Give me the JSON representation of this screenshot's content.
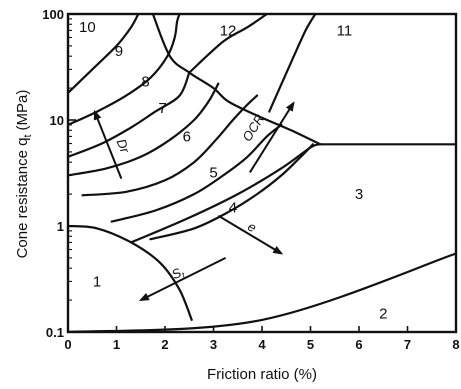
{
  "chart_data": {
    "type": "line",
    "title": "",
    "xlabel": "Friction ratio (%)",
    "ylabel": "Cone resistance q",
    "ylabel_subscript": "t",
    "ylabel_unit": "(MPa)",
    "xlim": [
      0,
      8
    ],
    "ylim": [
      0.1,
      100
    ],
    "y_scale": "log",
    "x_ticks": [
      "0",
      "1",
      "2",
      "3",
      "4",
      "5",
      "6",
      "7",
      "8"
    ],
    "y_ticks": [
      {
        "value": 0.1,
        "label": "0.1"
      },
      {
        "value": 1,
        "label": "1"
      },
      {
        "value": 10,
        "label": "10"
      },
      {
        "value": 100,
        "label": "100"
      }
    ],
    "grid": false,
    "zone_labels": [
      {
        "label": "1",
        "x": 0.6,
        "y": 0.3
      },
      {
        "label": "2",
        "x": 6.5,
        "y": 0.15
      },
      {
        "label": "3",
        "x": 6.0,
        "y": 2.0
      },
      {
        "label": "4",
        "x": 3.4,
        "y": 1.5
      },
      {
        "label": "5",
        "x": 3.0,
        "y": 3.2
      },
      {
        "label": "6",
        "x": 2.45,
        "y": 7.0
      },
      {
        "label": "7",
        "x": 1.95,
        "y": 13.0
      },
      {
        "label": "8",
        "x": 1.6,
        "y": 23.0
      },
      {
        "label": "9",
        "x": 1.05,
        "y": 45.0
      },
      {
        "label": "10",
        "x": 0.4,
        "y": 75.0
      },
      {
        "label": "11",
        "x": 5.7,
        "y": 70.0
      },
      {
        "label": "12",
        "x": 3.3,
        "y": 70.0
      }
    ],
    "boundaries": [
      [
        [
          0,
          0.1
        ],
        [
          4,
          0.13
        ],
        [
          8,
          0.55
        ]
      ],
      [
        [
          0,
          1.0
        ],
        [
          0.6,
          0.95
        ],
        [
          1.3,
          0.7
        ],
        [
          1.9,
          0.45
        ],
        [
          2.3,
          0.25
        ],
        [
          2.55,
          0.13
        ]
      ],
      [
        [
          1.3,
          0.7
        ],
        [
          2.5,
          1.2
        ],
        [
          3.5,
          2.0
        ],
        [
          4.4,
          3.5
        ],
        [
          5.0,
          5.5
        ],
        [
          5.2,
          5.9
        ]
      ],
      [
        [
          5.2,
          5.9
        ],
        [
          8,
          5.9
        ]
      ],
      [
        [
          1.75,
          100
        ],
        [
          2.1,
          40
        ],
        [
          2.5,
          28
        ],
        [
          3.0,
          20
        ],
        [
          3.3,
          15
        ],
        [
          3.9,
          11
        ],
        [
          4.6,
          8
        ],
        [
          5.2,
          5.9
        ]
      ],
      [
        [
          2.5,
          28
        ],
        [
          3.2,
          55
        ],
        [
          3.7,
          75
        ],
        [
          4.1,
          100
        ]
      ],
      [
        [
          4.15,
          12
        ],
        [
          4.6,
          35
        ],
        [
          4.9,
          70
        ],
        [
          5.1,
          100
        ]
      ],
      [
        [
          0,
          18
        ],
        [
          0.5,
          30
        ],
        [
          1.0,
          50
        ],
        [
          1.3,
          75
        ],
        [
          1.45,
          100
        ]
      ],
      [
        [
          0,
          9
        ],
        [
          0.6,
          12
        ],
        [
          1.2,
          17
        ],
        [
          1.7,
          25
        ],
        [
          2.05,
          40
        ],
        [
          2.2,
          60
        ],
        [
          2.25,
          85
        ],
        [
          2.3,
          100
        ]
      ],
      [
        [
          0,
          4.5
        ],
        [
          0.7,
          6
        ],
        [
          1.3,
          8.5
        ],
        [
          1.8,
          12
        ],
        [
          2.3,
          17
        ],
        [
          2.5,
          28
        ]
      ],
      [
        [
          0,
          3.0
        ],
        [
          0.8,
          3.5
        ],
        [
          1.5,
          4.5
        ],
        [
          2.1,
          6.5
        ],
        [
          2.6,
          10
        ],
        [
          2.9,
          15
        ],
        [
          3.1,
          22
        ]
      ],
      [
        [
          0.3,
          1.95
        ],
        [
          1.2,
          2.1
        ],
        [
          2.0,
          2.7
        ],
        [
          2.6,
          4.0
        ],
        [
          3.05,
          6.5
        ],
        [
          3.4,
          10
        ],
        [
          3.7,
          14
        ],
        [
          3.9,
          17
        ]
      ],
      [
        [
          0.9,
          1.1
        ],
        [
          1.8,
          1.4
        ],
        [
          2.6,
          2.0
        ],
        [
          3.2,
          3.0
        ],
        [
          3.7,
          4.5
        ],
        [
          4.1,
          7
        ],
        [
          4.4,
          9
        ]
      ],
      [
        [
          1.7,
          0.75
        ],
        [
          2.6,
          0.95
        ],
        [
          3.3,
          1.35
        ],
        [
          3.9,
          2.0
        ],
        [
          4.4,
          3.0
        ],
        [
          4.8,
          4.5
        ],
        [
          5.05,
          5.9
        ]
      ]
    ],
    "arrows": [
      {
        "label": "Dr",
        "from": [
          1.1,
          2.8
        ],
        "to": [
          0.55,
          12.0
        ],
        "label_at": [
          1.05,
          5.5
        ]
      },
      {
        "label": "OCR",
        "from": [
          3.75,
          3.2
        ],
        "to": [
          4.65,
          14.5
        ],
        "label_at": [
          3.9,
          8.0
        ]
      },
      {
        "label": "e",
        "from": [
          3.1,
          1.25
        ],
        "to": [
          4.4,
          0.55
        ],
        "label_at": [
          3.75,
          0.9
        ]
      },
      {
        "label": "S",
        "label_sub": "t",
        "from": [
          3.25,
          0.5
        ],
        "to": [
          1.5,
          0.2
        ],
        "label_at": [
          2.3,
          0.33
        ]
      }
    ]
  }
}
